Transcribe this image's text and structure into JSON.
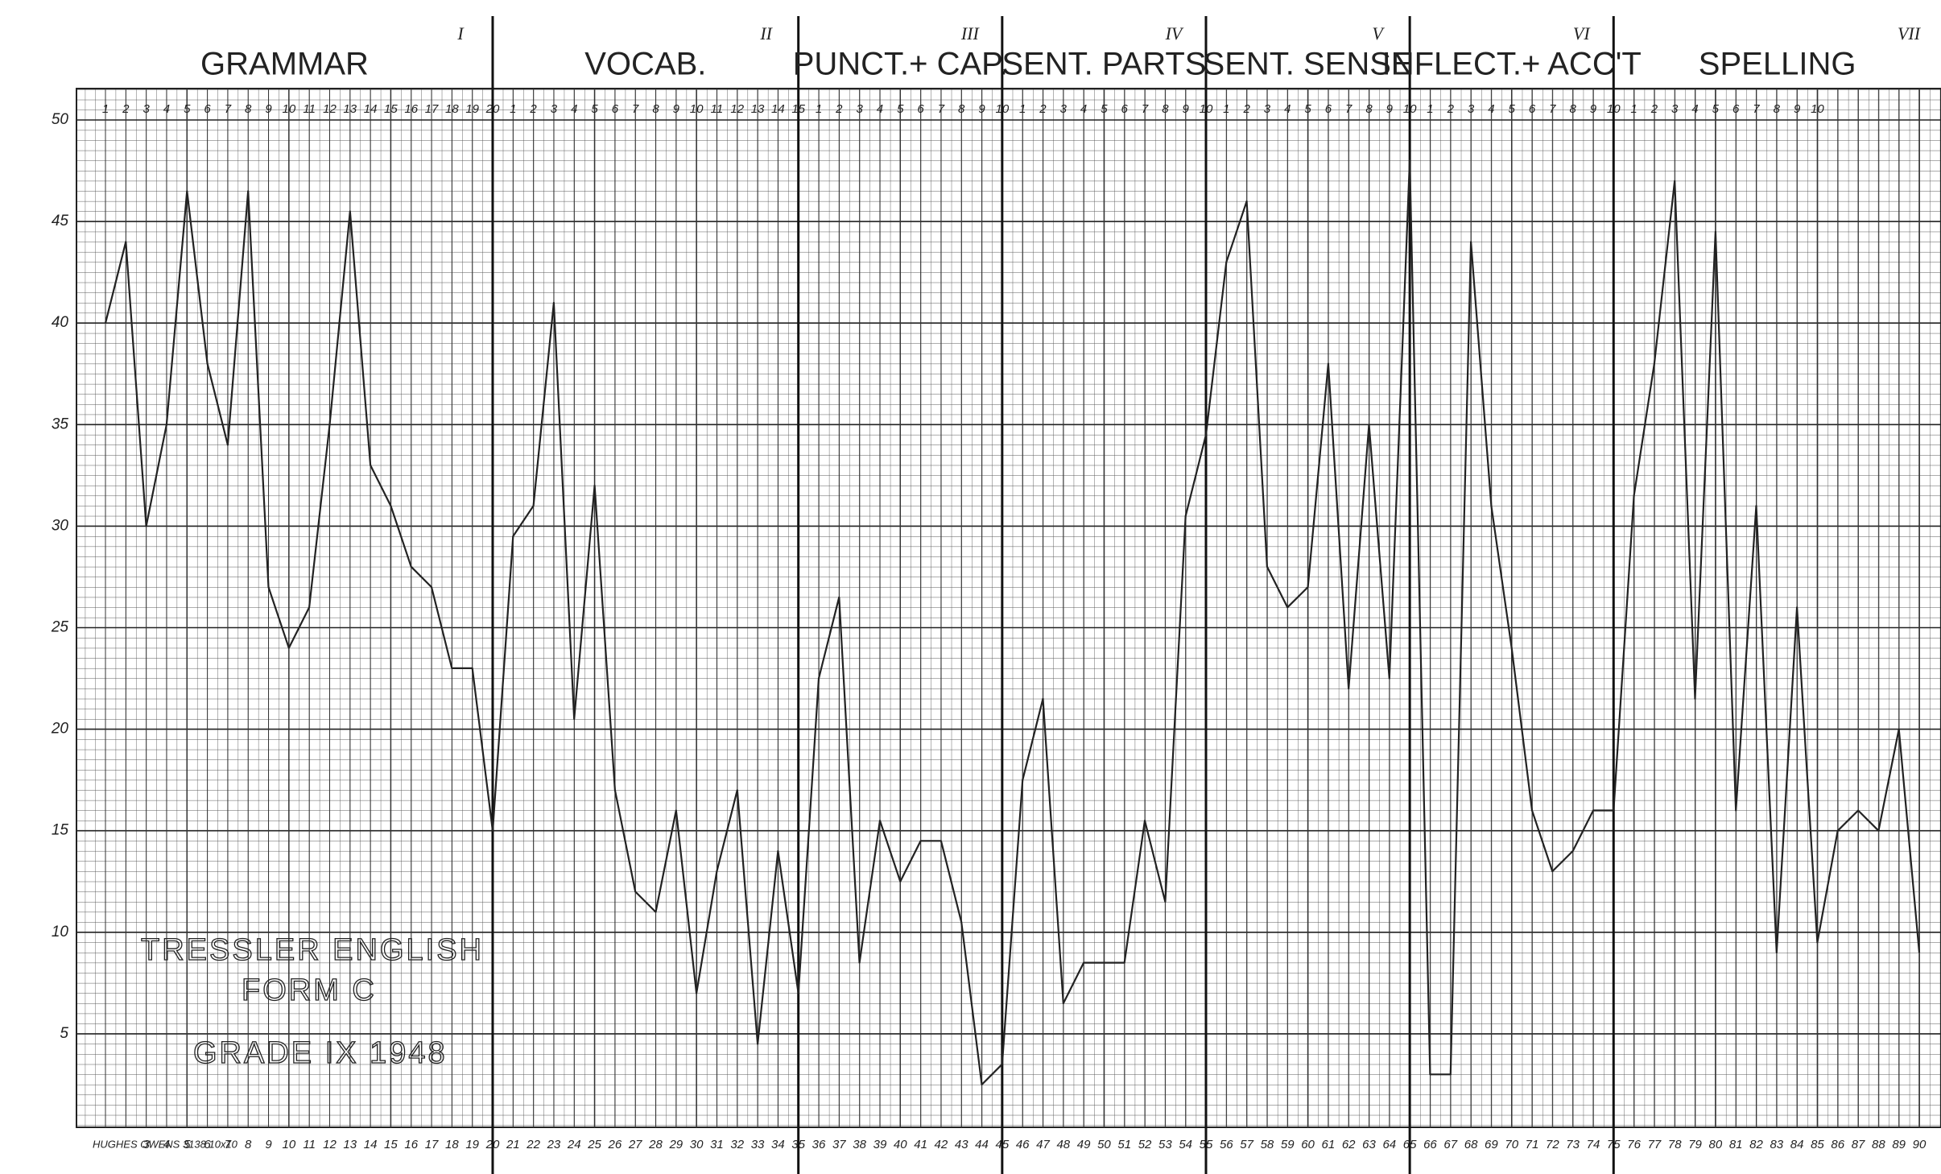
{
  "chart_data": {
    "type": "line",
    "x": [
      1,
      2,
      3,
      4,
      5,
      6,
      7,
      8,
      9,
      10,
      11,
      12,
      13,
      14,
      15,
      16,
      17,
      18,
      19,
      20,
      21,
      22,
      23,
      24,
      25,
      26,
      27,
      28,
      29,
      30,
      31,
      32,
      33,
      34,
      35,
      36,
      37,
      38,
      39,
      40,
      41,
      42,
      43,
      44,
      45,
      46,
      47,
      48,
      49,
      50,
      51,
      52,
      53,
      54,
      55,
      56,
      57,
      58,
      59,
      60,
      61,
      62,
      63,
      64,
      65,
      66,
      67,
      68,
      69,
      70,
      71,
      72,
      73,
      74,
      75,
      76,
      77,
      78,
      79,
      80,
      81,
      82,
      83,
      84,
      85,
      86,
      87,
      88,
      89,
      90
    ],
    "values": [
      40,
      44,
      30,
      35,
      46.5,
      38,
      34,
      46.5,
      27,
      24,
      26,
      35,
      45.5,
      33,
      31,
      28,
      27,
      23,
      23,
      15,
      29.5,
      31,
      41,
      20.5,
      32,
      17,
      12,
      11,
      16,
      7,
      13,
      17,
      4.5,
      14,
      7,
      22.5,
      26.5,
      8.5,
      15.5,
      12.5,
      14.5,
      14.5,
      10.5,
      2.5,
      3.5,
      17.5,
      21.5,
      6.5,
      8.5,
      8.5,
      8.5,
      15.5,
      11.5,
      30.5,
      34.5,
      43,
      46,
      28,
      26,
      27,
      38,
      22,
      35,
      22.5,
      48,
      3,
      3,
      44,
      31,
      24,
      16,
      13,
      14,
      16,
      16,
      31.5,
      38,
      47,
      21.5,
      44.5,
      16,
      31,
      9,
      26,
      9.5,
      15,
      16,
      15,
      20,
      9
    ],
    "color": "#222222",
    "xlim": [
      1,
      90
    ],
    "ylim": [
      0,
      50
    ],
    "yticks": [
      5,
      10,
      15,
      20,
      25,
      30,
      35,
      40,
      45,
      50
    ],
    "grid": true,
    "sections": [
      {
        "title": "GRAMMAR",
        "numeral": "I",
        "item_labels": [
          1,
          2,
          3,
          4,
          5,
          6,
          7,
          8,
          9,
          10,
          11,
          12,
          13,
          14,
          15,
          16,
          17,
          18,
          19,
          20
        ]
      },
      {
        "title": "VOCAB.",
        "numeral": "II",
        "item_labels": [
          1,
          2,
          3,
          4,
          5,
          6,
          7,
          8,
          9,
          10,
          11,
          12,
          13,
          14,
          15
        ]
      },
      {
        "title": "PUNCT.+ CAP.",
        "numeral": "III",
        "item_labels": [
          1,
          2,
          3,
          4,
          5,
          6,
          7,
          8,
          9,
          10
        ]
      },
      {
        "title": "SENT. PARTS",
        "numeral": "IV",
        "item_labels": [
          1,
          2,
          3,
          4,
          5,
          6,
          7,
          8,
          9,
          10
        ]
      },
      {
        "title": "SENT. SENSE",
        "numeral": "V",
        "item_labels": [
          1,
          2,
          3,
          4,
          5,
          6,
          7,
          8,
          9,
          10
        ]
      },
      {
        "title": "INFLECT.+ ACC'T",
        "numeral": "VI",
        "item_labels": [
          1,
          2,
          3,
          4,
          5,
          6,
          7,
          8,
          9,
          10
        ]
      },
      {
        "title": "SPELLING",
        "numeral": "VII",
        "item_labels": [
          1,
          2,
          3,
          4,
          5,
          6,
          7,
          8,
          9,
          10
        ]
      }
    ],
    "annotations": [
      "TRESSLER ENGLISH",
      "FORM C",
      "GRADE IX 1948"
    ],
    "footer": "HUGHES OWENS 3138 10x10"
  }
}
